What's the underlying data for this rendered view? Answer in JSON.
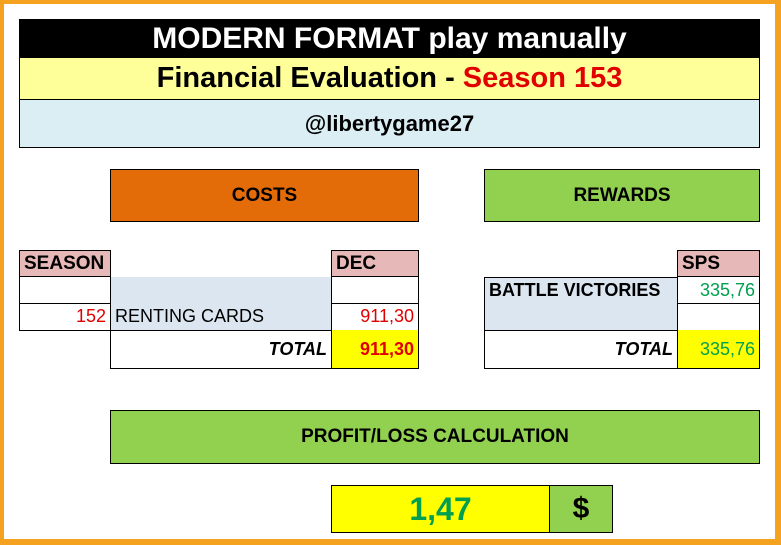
{
  "header": {
    "title": "MODERN FORMAT play manually",
    "subtitle_prefix": "Financial Evaluation - ",
    "subtitle_season": "Season 153",
    "handle": "@libertygame27"
  },
  "costs": {
    "heading": "COSTS",
    "col_season": "SEASON",
    "col_currency": "DEC",
    "rows": [
      {
        "season": "",
        "label": "",
        "value": ""
      },
      {
        "season": "152",
        "label": "RENTING CARDS",
        "value": "911,30"
      }
    ],
    "total_label": "TOTAL",
    "total_value": "911,30"
  },
  "rewards": {
    "heading": "REWARDS",
    "col_currency": "SPS",
    "rows": [
      {
        "label": "BATTLE VICTORIES",
        "value": "335,76"
      },
      {
        "label": "",
        "value": ""
      }
    ],
    "total_label": "TOTAL",
    "total_value": "335,76"
  },
  "profit": {
    "heading": "PROFIT/LOSS CALCULATION",
    "value": "1,47",
    "currency": "$"
  },
  "colors": {
    "frame": "#f4a21f",
    "costs_header": "#e36c09",
    "rewards_header": "#92d050",
    "column_header": "#e6b8b7",
    "label_cell": "#dce6f1",
    "total_cell": "#ffff00",
    "negative_text": "#e00000",
    "positive_text": "#00a050"
  }
}
